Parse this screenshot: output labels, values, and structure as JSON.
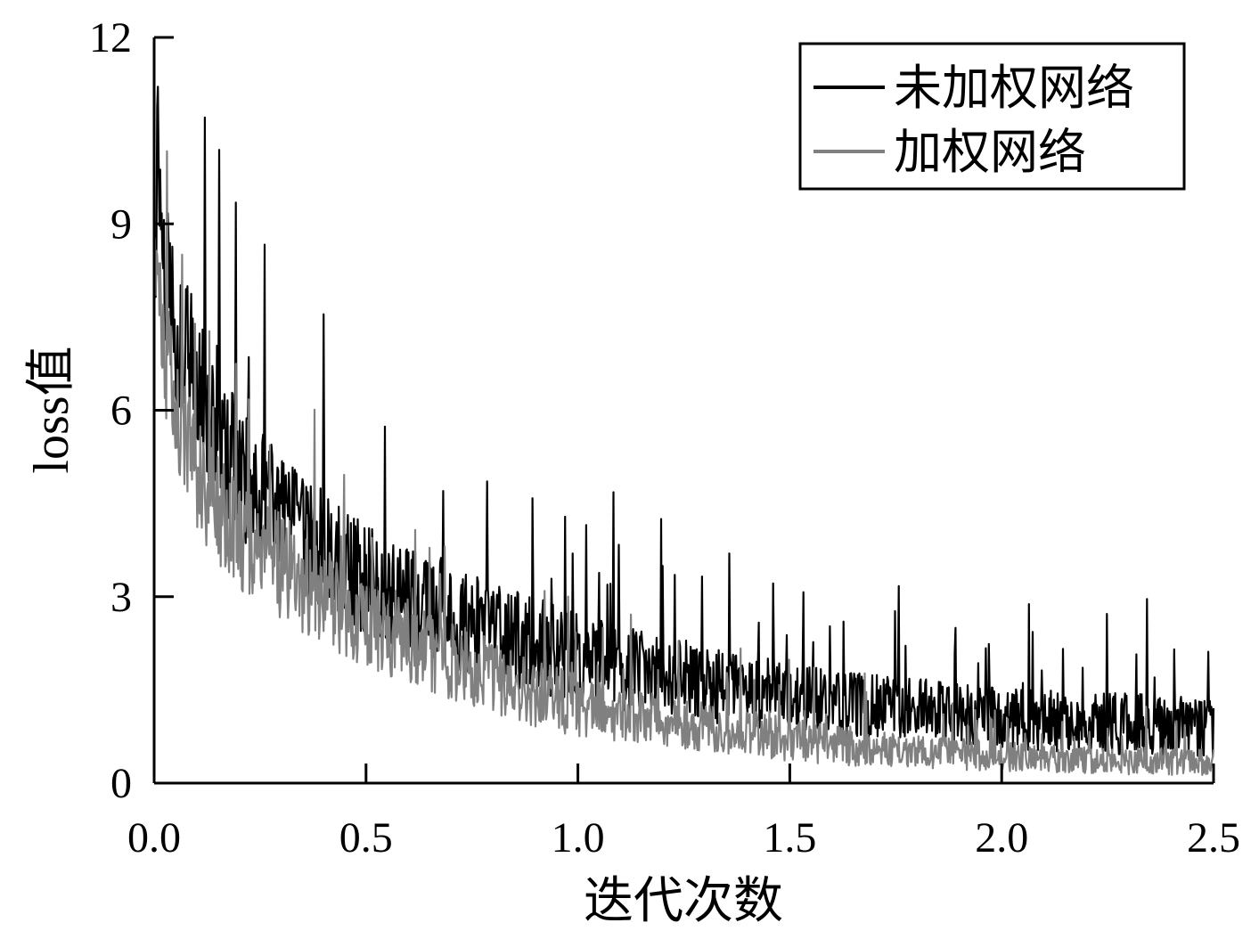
{
  "chart_data": {
    "type": "line",
    "xlabel": "迭代次数",
    "ylabel": "loss值",
    "xlim": [
      0,
      2.5
    ],
    "ylim": [
      0,
      12
    ],
    "x_ticks": [
      0.0,
      0.5,
      1.0,
      1.5,
      2.0,
      2.5
    ],
    "x_tick_labels": [
      "0.0",
      "0.5",
      "1.0",
      "1.5",
      "2.0",
      "2.5"
    ],
    "y_ticks": [
      0,
      3,
      6,
      9,
      12
    ],
    "y_tick_labels": [
      "0",
      "3",
      "6",
      "9",
      "12"
    ],
    "grid": false,
    "legend_position": "top-right",
    "series": [
      {
        "name": "未加权网络",
        "color": "#000000",
        "x": [
          0.0,
          0.01,
          0.02,
          0.05,
          0.1,
          0.15,
          0.2,
          0.3,
          0.4,
          0.5,
          0.6,
          0.7,
          0.8,
          0.9,
          1.0,
          1.1,
          1.2,
          1.3,
          1.4,
          1.5,
          1.6,
          1.7,
          1.8,
          1.9,
          2.0,
          2.1,
          2.2,
          2.3,
          2.4,
          2.5
        ],
        "y": [
          8.2,
          10.5,
          8.6,
          7.4,
          6.4,
          5.5,
          5.0,
          4.3,
          3.7,
          3.3,
          3.0,
          2.7,
          2.4,
          2.2,
          2.0,
          1.85,
          1.7,
          1.6,
          1.5,
          1.4,
          1.3,
          1.25,
          1.2,
          1.1,
          1.05,
          1.0,
          0.95,
          0.95,
          0.9,
          0.9
        ],
        "noise": [
          1.1,
          1.6,
          1.3,
          1.3,
          1.2,
          1.2,
          1.1,
          1.0,
          1.0,
          0.9,
          0.9,
          0.85,
          0.8,
          0.8,
          0.75,
          0.7,
          0.7,
          0.65,
          0.6,
          0.6,
          0.55,
          0.55,
          0.5,
          0.5,
          0.5,
          0.5,
          0.5,
          0.5,
          0.5,
          0.5
        ]
      },
      {
        "name": "加权网络",
        "color": "#808080",
        "x": [
          0.0,
          0.01,
          0.02,
          0.05,
          0.1,
          0.15,
          0.2,
          0.3,
          0.4,
          0.5,
          0.6,
          0.7,
          0.8,
          0.9,
          1.0,
          1.1,
          1.2,
          1.3,
          1.4,
          1.5,
          1.6,
          1.7,
          1.8,
          1.9,
          2.0,
          2.1,
          2.2,
          2.3,
          2.4,
          2.5
        ],
        "y": [
          7.8,
          8.8,
          7.2,
          6.0,
          5.1,
          4.4,
          4.0,
          3.5,
          3.0,
          2.6,
          2.3,
          2.0,
          1.7,
          1.45,
          1.25,
          1.1,
          1.0,
          0.9,
          0.8,
          0.7,
          0.62,
          0.56,
          0.5,
          0.46,
          0.42,
          0.4,
          0.38,
          0.36,
          0.35,
          0.35
        ],
        "noise": [
          0.9,
          1.0,
          1.0,
          1.0,
          1.0,
          0.95,
          0.9,
          0.85,
          0.8,
          0.75,
          0.7,
          0.65,
          0.6,
          0.55,
          0.5,
          0.45,
          0.42,
          0.4,
          0.38,
          0.36,
          0.33,
          0.3,
          0.28,
          0.26,
          0.25,
          0.24,
          0.23,
          0.22,
          0.22,
          0.22
        ]
      }
    ]
  }
}
